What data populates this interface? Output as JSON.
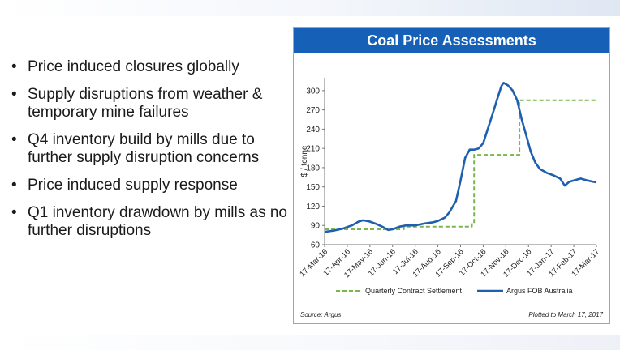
{
  "bullets": [
    "Price induced closures globally",
    "Supply disruptions from weather & temporary mine failures",
    "Q4 inventory build by mills due to further supply disruption concerns",
    "Price induced supply response",
    "Q1 inventory drawdown by mills as no further disruptions"
  ],
  "bullet_symbol": "•",
  "chart_data": {
    "type": "line",
    "title": "Coal Price Assessments",
    "ylabel": "$ / tonne",
    "xlabel": "",
    "ylim": [
      60,
      320
    ],
    "yticks": [
      60,
      90,
      120,
      150,
      180,
      210,
      240,
      270,
      300
    ],
    "xticks": [
      "17-Mar-16",
      "17-Apr-16",
      "17-May-16",
      "17-Jun-16",
      "17-Jul-16",
      "17-Aug-16",
      "17-Sep-16",
      "17-Oct-16",
      "17-Nov-16",
      "17-Dec-16",
      "17-Jan-17",
      "17-Feb-17",
      "17-Mar-17"
    ],
    "grid": false,
    "legend_position": "bottom",
    "source": "Source: Argus",
    "note": "Plotted to March 17, 2017",
    "series": [
      {
        "name": "Quarterly Contract Settlement",
        "style": "dashed",
        "color": "#7ab648",
        "points": [
          [
            0,
            84
          ],
          [
            1.5,
            84
          ],
          [
            1.5,
            84
          ],
          [
            3.5,
            84
          ],
          [
            3.5,
            88
          ],
          [
            6.5,
            88
          ],
          [
            6.5,
            92
          ],
          [
            6.6,
            92
          ],
          [
            6.6,
            200
          ],
          [
            8.6,
            200
          ],
          [
            8.6,
            285
          ],
          [
            12,
            285
          ]
        ]
      },
      {
        "name": "Argus FOB Australia",
        "style": "solid",
        "color": "#1f5fb0",
        "points": [
          [
            0,
            80
          ],
          [
            0.4,
            82
          ],
          [
            0.8,
            85
          ],
          [
            1.2,
            90
          ],
          [
            1.5,
            96
          ],
          [
            1.7,
            98
          ],
          [
            2.0,
            96
          ],
          [
            2.3,
            92
          ],
          [
            2.6,
            87
          ],
          [
            2.8,
            83
          ],
          [
            3.0,
            84
          ],
          [
            3.3,
            88
          ],
          [
            3.6,
            90
          ],
          [
            4.0,
            90
          ],
          [
            4.4,
            93
          ],
          [
            4.8,
            95
          ],
          [
            5.0,
            97
          ],
          [
            5.3,
            102
          ],
          [
            5.5,
            110
          ],
          [
            5.8,
            128
          ],
          [
            6.0,
            160
          ],
          [
            6.2,
            195
          ],
          [
            6.4,
            208
          ],
          [
            6.6,
            208
          ],
          [
            6.8,
            210
          ],
          [
            7.0,
            218
          ],
          [
            7.2,
            240
          ],
          [
            7.4,
            262
          ],
          [
            7.6,
            285
          ],
          [
            7.8,
            307
          ],
          [
            7.9,
            312
          ],
          [
            8.1,
            308
          ],
          [
            8.3,
            300
          ],
          [
            8.5,
            285
          ],
          [
            8.7,
            255
          ],
          [
            8.9,
            230
          ],
          [
            9.1,
            205
          ],
          [
            9.3,
            188
          ],
          [
            9.5,
            178
          ],
          [
            9.8,
            172
          ],
          [
            10.1,
            168
          ],
          [
            10.4,
            163
          ],
          [
            10.6,
            152
          ],
          [
            10.8,
            158
          ],
          [
            11.0,
            160
          ],
          [
            11.3,
            163
          ],
          [
            11.6,
            160
          ],
          [
            12,
            157
          ]
        ]
      }
    ]
  }
}
